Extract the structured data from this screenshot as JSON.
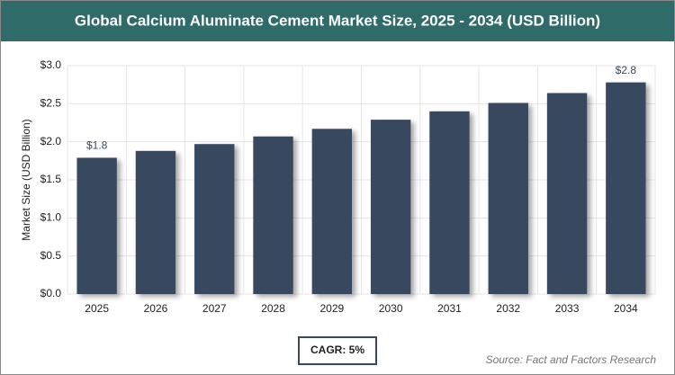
{
  "chart_data": {
    "type": "bar",
    "title": "Global Calcium Aluminate Cement Market Size, 2025 - 2034 (USD Billion)",
    "y_label": "Market Size (USD Billion)",
    "categories": [
      "2025",
      "2026",
      "2027",
      "2028",
      "2029",
      "2030",
      "2031",
      "2032",
      "2033",
      "2034"
    ],
    "values": [
      1.79,
      1.88,
      1.97,
      2.07,
      2.17,
      2.29,
      2.4,
      2.51,
      2.64,
      2.78
    ],
    "value_labels": [
      "$1.8",
      null,
      null,
      null,
      null,
      null,
      null,
      null,
      null,
      "$2.8"
    ],
    "color": "#384a5f",
    "ylim": [
      0,
      3
    ],
    "yticks": [
      {
        "value": 0,
        "label": "$0.0"
      },
      {
        "value": 0.5,
        "label": "$0.5"
      },
      {
        "value": 1,
        "label": "$1.0"
      },
      {
        "value": 1.5,
        "label": "$1.5"
      },
      {
        "value": 2,
        "label": "$2.0"
      },
      {
        "value": 2.5,
        "label": "$2.5"
      },
      {
        "value": 3,
        "label": "$3.0"
      }
    ],
    "grid": true,
    "cagr": "CAGR: 5%",
    "source": "Source: Fact and Factors Research"
  }
}
